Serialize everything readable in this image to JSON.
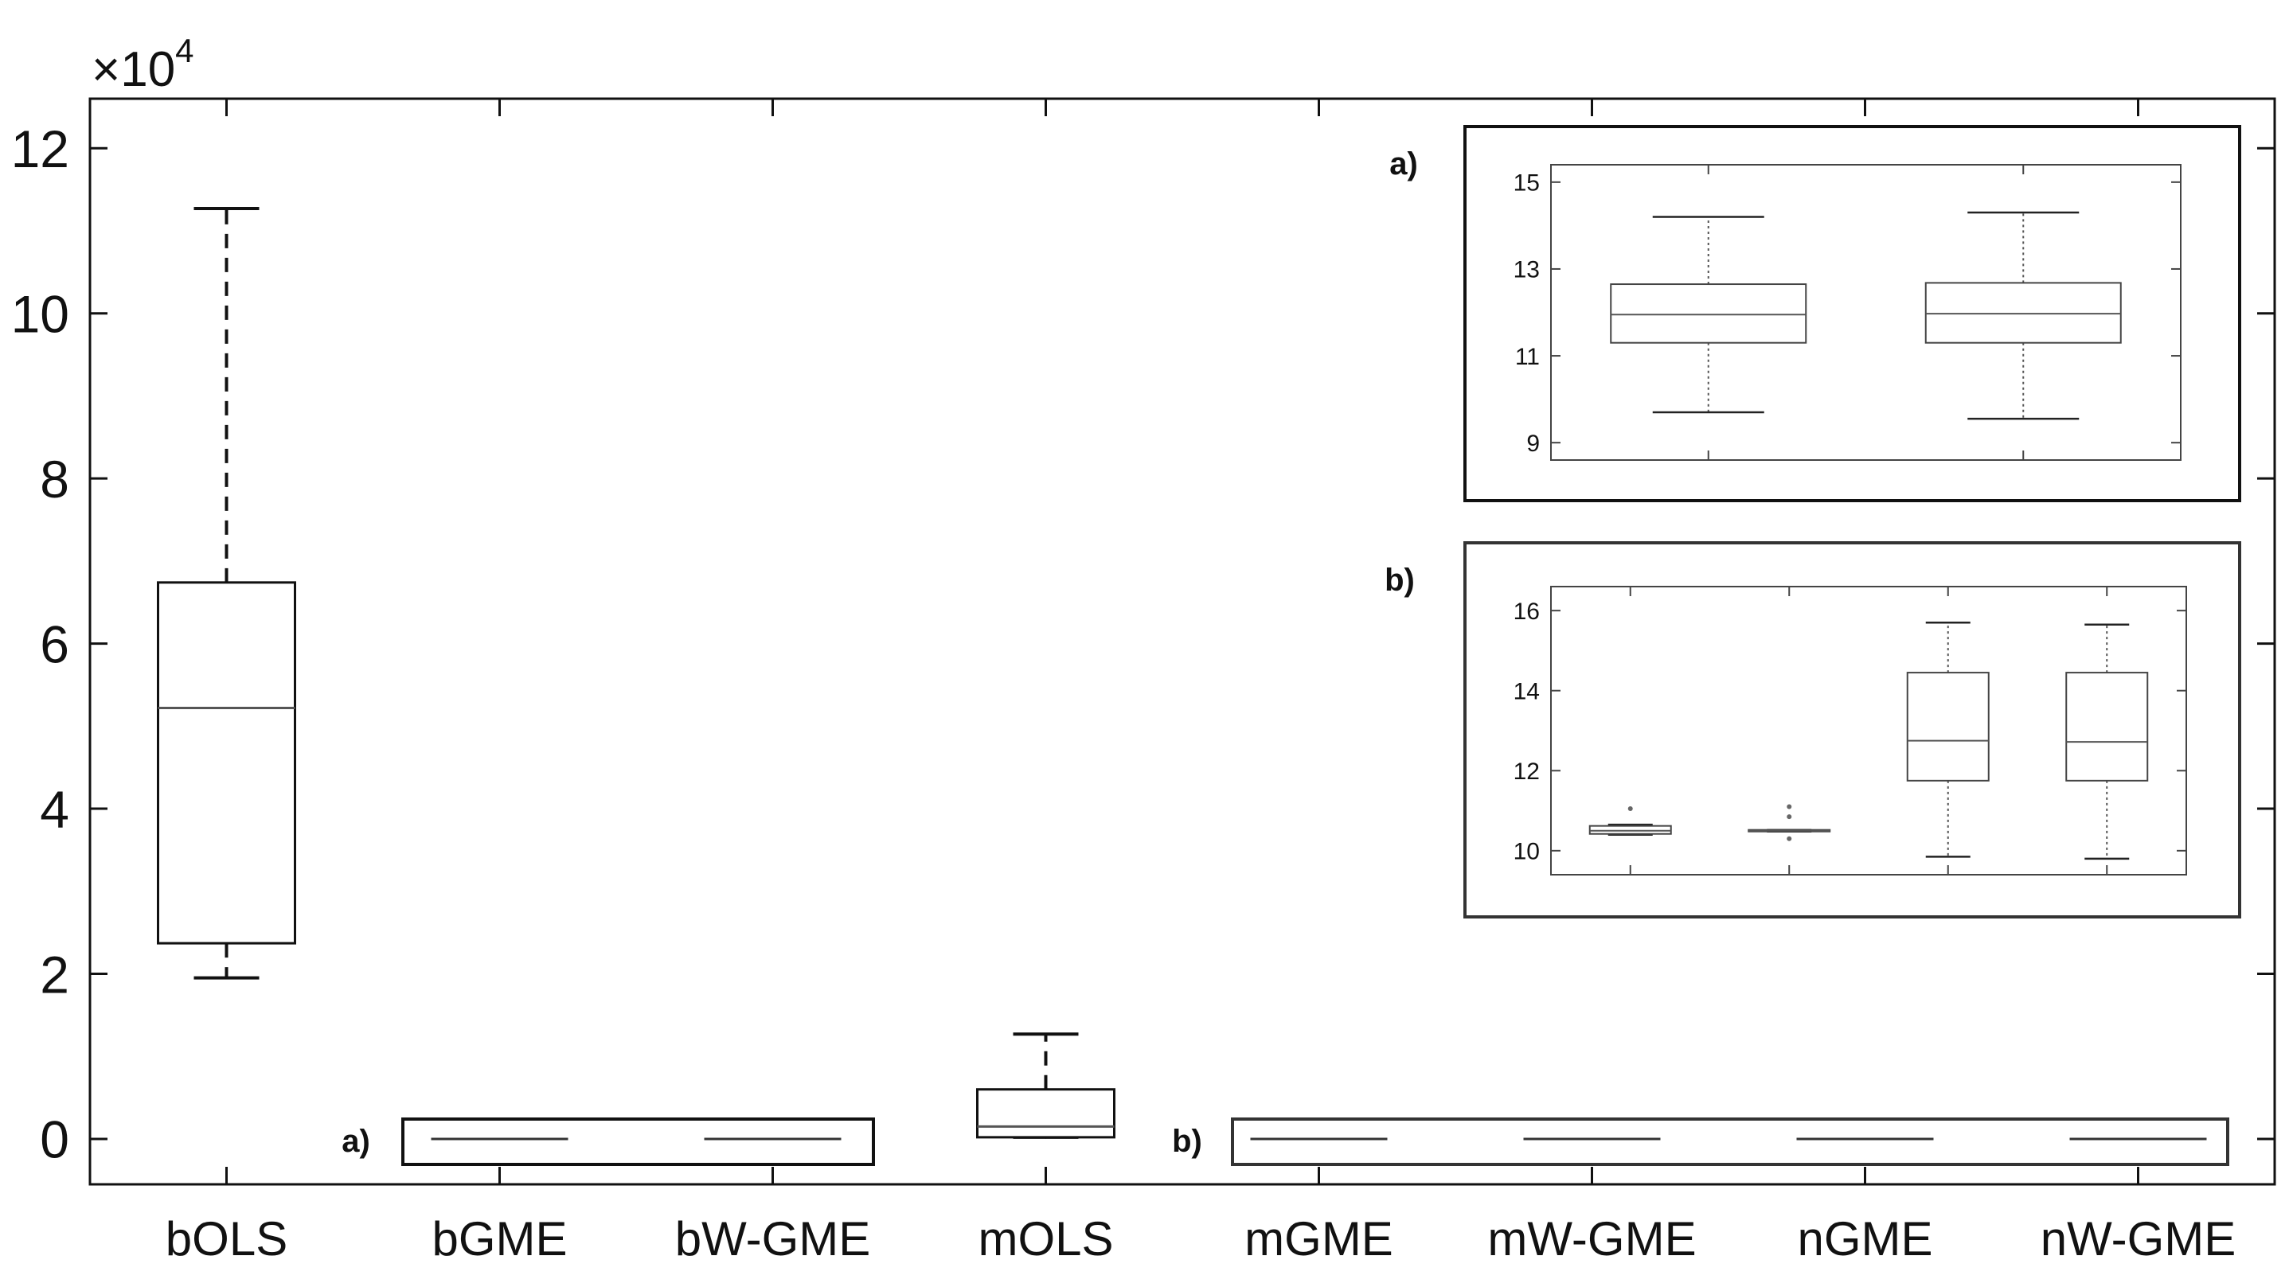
{
  "chart_data": [
    {
      "type": "box",
      "scale_label": "×10",
      "scale_exponent": "4",
      "ylim": [
        -0.55,
        12.6
      ],
      "yticks": [
        0,
        2,
        4,
        6,
        8,
        10,
        12
      ],
      "categories": [
        "bOLS",
        "bGME",
        "bW-GME",
        "mOLS",
        "mGME",
        "mW-GME",
        "nGME",
        "nW-GME"
      ],
      "boxes": [
        {
          "category": "bOLS",
          "whisker_low": 1.95,
          "q1": 2.37,
          "median": 5.22,
          "q3": 6.74,
          "whisker_high": 11.27
        },
        {
          "category": "mOLS",
          "whisker_low": 0.02,
          "q1": 0.02,
          "median": 0.15,
          "q3": 0.6,
          "whisker_high": 1.27
        }
      ],
      "collapsed_groups": [
        {
          "tag": "a)",
          "categories": [
            "bGME",
            "bW-GME"
          ]
        },
        {
          "tag": "b)",
          "categories": [
            "mGME",
            "mW-GME",
            "nGME",
            "nW-GME"
          ]
        }
      ],
      "grid": false
    },
    {
      "type": "box",
      "inset": "a)",
      "ylim": [
        8.6,
        15.4
      ],
      "yticks": [
        9,
        11,
        13,
        15
      ],
      "categories": [
        "bGME",
        "bW-GME"
      ],
      "boxes": [
        {
          "category": "bGME",
          "whisker_low": 9.7,
          "q1": 11.3,
          "median": 11.95,
          "q3": 12.65,
          "whisker_high": 14.2
        },
        {
          "category": "bW-GME",
          "whisker_low": 9.55,
          "q1": 11.3,
          "median": 11.97,
          "q3": 12.68,
          "whisker_high": 14.3
        }
      ]
    },
    {
      "type": "box",
      "inset": "b)",
      "ylim": [
        9.4,
        16.6
      ],
      "yticks": [
        10,
        12,
        14,
        16
      ],
      "categories": [
        "mGME",
        "mW-GME",
        "nGME",
        "nW-GME"
      ],
      "boxes": [
        {
          "category": "mGME",
          "whisker_low": 10.4,
          "q1": 10.42,
          "median": 10.5,
          "q3": 10.62,
          "whisker_high": 10.65,
          "outliers": [
            11.05
          ]
        },
        {
          "category": "mW-GME",
          "whisker_low": 10.48,
          "q1": 10.48,
          "median": 10.5,
          "q3": 10.52,
          "whisker_high": 10.52,
          "outliers": [
            10.3,
            10.85,
            11.1
          ]
        },
        {
          "category": "nGME",
          "whisker_low": 9.85,
          "q1": 11.75,
          "median": 12.75,
          "q3": 14.45,
          "whisker_high": 15.7
        },
        {
          "category": "nW-GME",
          "whisker_low": 9.8,
          "q1": 11.75,
          "median": 12.72,
          "q3": 14.45,
          "whisker_high": 15.65
        }
      ]
    }
  ]
}
